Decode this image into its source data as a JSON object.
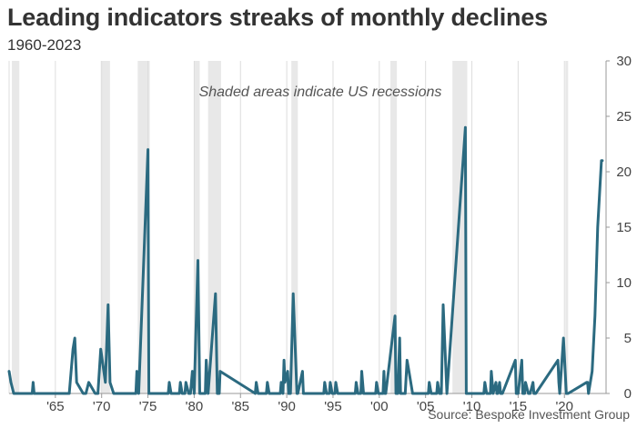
{
  "header": {
    "title": "Leading indicators streaks of monthly declines",
    "subtitle": "1960-2023"
  },
  "footer": {
    "source": "Source: Bespoke Investment Group"
  },
  "chart_data": {
    "type": "line",
    "title": "Leading indicators streaks of monthly declines",
    "subtitle": "1960-2023",
    "annotation": "Shaded areas indicate US recessions",
    "xlim": [
      1960,
      2024.5
    ],
    "ylim": [
      0,
      30
    ],
    "y_axis_position": "right",
    "grid": "vertical",
    "x_ticks": [
      {
        "value": 1965,
        "label": "'65"
      },
      {
        "value": 1970,
        "label": "'70"
      },
      {
        "value": 1975,
        "label": "'75"
      },
      {
        "value": 1980,
        "label": "'80"
      },
      {
        "value": 1985,
        "label": "'85"
      },
      {
        "value": 1990,
        "label": "'90"
      },
      {
        "value": 1995,
        "label": "'95"
      },
      {
        "value": 2000,
        "label": "'00"
      },
      {
        "value": 2005,
        "label": "'05"
      },
      {
        "value": 2010,
        "label": "'10"
      },
      {
        "value": 2015,
        "label": "'15"
      },
      {
        "value": 2020,
        "label": "'20"
      }
    ],
    "y_ticks": [
      0,
      5,
      10,
      15,
      20,
      25,
      30
    ],
    "recessions": [
      [
        1960.3,
        1961.1
      ],
      [
        1969.9,
        1970.9
      ],
      [
        1973.9,
        1975.2
      ],
      [
        1980.0,
        1980.6
      ],
      [
        1981.5,
        1982.9
      ],
      [
        1990.5,
        1991.2
      ],
      [
        2001.2,
        2001.9
      ],
      [
        2007.9,
        2009.5
      ],
      [
        2020.1,
        2020.4
      ]
    ],
    "colors": {
      "line": "#2b6a80",
      "recession": "#e8e8e8",
      "grid": "#dddddd",
      "axis": "#999999"
    },
    "series": [
      {
        "x": [
          1960.0,
          1960.2,
          1960.5,
          1962.5,
          1962.6,
          1962.7,
          1966.5,
          1966.9,
          1967.1,
          1967.3,
          1968.0,
          1968.3,
          1968.6,
          1969.3,
          1969.6,
          1969.9,
          1970.4,
          1970.7,
          1970.9,
          1971.3,
          1973.7,
          1973.8,
          1974.0,
          1975.0,
          1975.1,
          1975.3,
          1977.2,
          1977.3,
          1977.5,
          1978.4,
          1978.5,
          1978.7,
          1979.0,
          1979.1,
          1979.4,
          1979.6,
          1979.8,
          1980.0,
          1980.4,
          1980.6,
          1980.8,
          1981.2,
          1981.3,
          1981.5,
          1982.3,
          1982.5,
          1982.7,
          1982.8,
          1986.6,
          1986.7,
          1986.9,
          1987.8,
          1987.9,
          1988.1,
          1989.3,
          1989.4,
          1989.6,
          1989.7,
          1989.8,
          1990.1,
          1990.2,
          1990.4,
          1990.7,
          1991.1,
          1991.2,
          1991.7,
          1991.8,
          1992.0,
          1994.0,
          1994.1,
          1994.3,
          1994.6,
          1994.7,
          1994.9,
          1995.2,
          1995.3,
          1995.5,
          1997.4,
          1997.5,
          1997.7,
          1998.0,
          1998.1,
          1998.3,
          1999.6,
          1999.7,
          1999.9,
          2000.4,
          2000.5,
          2000.6,
          2000.7,
          2001.7,
          2001.8,
          2002.0,
          2002.2,
          2002.3,
          2002.5,
          2002.8,
          2003.0,
          2003.2,
          2003.6,
          2005.3,
          2005.4,
          2005.6,
          2006.2,
          2006.3,
          2006.5,
          2006.7,
          2006.9,
          2007.3,
          2009.3,
          2009.4,
          2009.6,
          2011.3,
          2011.4,
          2011.6,
          2012.0,
          2012.1,
          2012.3,
          2012.6,
          2012.7,
          2012.8,
          2013.0,
          2013.1,
          2013.3,
          2014.7,
          2014.8,
          2015.0,
          2015.4,
          2015.5,
          2015.7,
          2015.8,
          2016.1,
          2016.3,
          2016.6,
          2016.7,
          2016.9,
          2019.3,
          2019.4,
          2019.5,
          2019.9,
          2020.2,
          2020.4,
          2022.4,
          2022.5,
          2022.6,
          2023.0,
          2023.3,
          2023.6,
          2024.0,
          2024.1
        ],
        "y": [
          2,
          1,
          0,
          0,
          1,
          0,
          0,
          4,
          5,
          1,
          0,
          0,
          1,
          0,
          0,
          4,
          1,
          8,
          1,
          0,
          0,
          2,
          0,
          22,
          0,
          0,
          0,
          1,
          0,
          0,
          1,
          0,
          0,
          1,
          0,
          0,
          2,
          0,
          12,
          0,
          0,
          0,
          3,
          0,
          9,
          0,
          0,
          2,
          0,
          1,
          0,
          0,
          1,
          0,
          0,
          1,
          0,
          3,
          1,
          2,
          0,
          0,
          9,
          0,
          0,
          2,
          0,
          0,
          0,
          1,
          0,
          0,
          1,
          0,
          0,
          1,
          0,
          0,
          1,
          0,
          0,
          2,
          0,
          0,
          1,
          0,
          0,
          2,
          0,
          0,
          7,
          0,
          0,
          5,
          0,
          0,
          0,
          3,
          2,
          0,
          0,
          1,
          0,
          0,
          1,
          0,
          0,
          8,
          0,
          24,
          0,
          0,
          0,
          1,
          0,
          0,
          2,
          0,
          1,
          0,
          0,
          1,
          0,
          0,
          3,
          0,
          0,
          3,
          0,
          0,
          1,
          0,
          0,
          1,
          0,
          0,
          3,
          1,
          0,
          5,
          0,
          0,
          1,
          1,
          0,
          2,
          7,
          15,
          21,
          21
        ]
      }
    ]
  }
}
